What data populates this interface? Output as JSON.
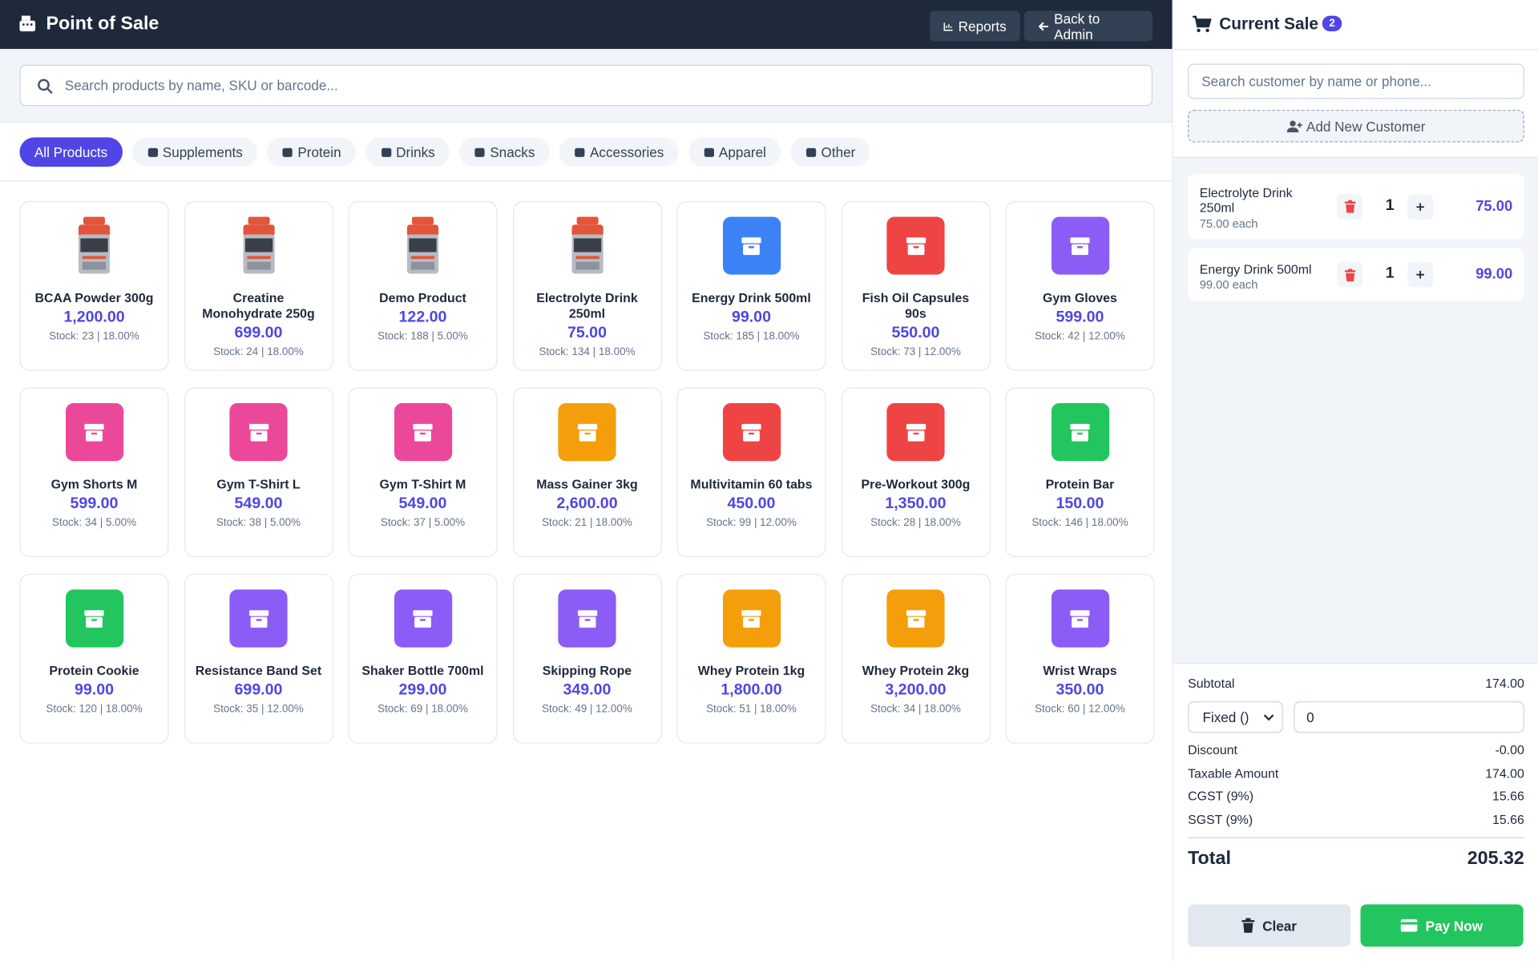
{
  "header": {
    "title": "Point of Sale",
    "buttons": [
      "Reports",
      "Back to Admin"
    ]
  },
  "search": {
    "placeholder": "Search products by name, SKU or barcode..."
  },
  "categories": [
    "All Products",
    "Supplements",
    "Protein",
    "Drinks",
    "Snacks",
    "Accessories",
    "Apparel",
    "Other"
  ],
  "active_category": 0,
  "products": [
    {
      "name": "BCAA Powder 300g",
      "price": "1,200.00",
      "stock": "Stock: 23 | 18.00%",
      "thumb": "photo"
    },
    {
      "name": "Creatine Monohydrate 250g",
      "price": "699.00",
      "stock": "Stock: 24 | 18.00%",
      "thumb": "photo"
    },
    {
      "name": "Demo Product",
      "price": "122.00",
      "stock": "Stock: 188 | 5.00%",
      "thumb": "photo"
    },
    {
      "name": "Electrolyte Drink 250ml",
      "price": "75.00",
      "stock": "Stock: 134 | 18.00%",
      "thumb": "photo"
    },
    {
      "name": "Energy Drink 500ml",
      "price": "99.00",
      "stock": "Stock: 185 | 18.00%",
      "thumb": "#3b82f6"
    },
    {
      "name": "Fish Oil Capsules 90s",
      "price": "550.00",
      "stock": "Stock: 73 | 12.00%",
      "thumb": "#ef4444"
    },
    {
      "name": "Gym Gloves",
      "price": "599.00",
      "stock": "Stock: 42 | 12.00%",
      "thumb": "#8b5cf6"
    },
    {
      "name": "Gym Shorts M",
      "price": "599.00",
      "stock": "Stock: 34 | 5.00%",
      "thumb": "#ec4899"
    },
    {
      "name": "Gym T-Shirt L",
      "price": "549.00",
      "stock": "Stock: 38 | 5.00%",
      "thumb": "#ec4899"
    },
    {
      "name": "Gym T-Shirt M",
      "price": "549.00",
      "stock": "Stock: 37 | 5.00%",
      "thumb": "#ec4899"
    },
    {
      "name": "Mass Gainer 3kg",
      "price": "2,600.00",
      "stock": "Stock: 21 | 18.00%",
      "thumb": "#f59e0b"
    },
    {
      "name": "Multivitamin 60 tabs",
      "price": "450.00",
      "stock": "Stock: 99 | 12.00%",
      "thumb": "#ef4444"
    },
    {
      "name": "Pre-Workout 300g",
      "price": "1,350.00",
      "stock": "Stock: 28 | 18.00%",
      "thumb": "#ef4444"
    },
    {
      "name": "Protein Bar",
      "price": "150.00",
      "stock": "Stock: 146 | 18.00%",
      "thumb": "#22c55e"
    },
    {
      "name": "Protein Cookie",
      "price": "99.00",
      "stock": "Stock: 120 | 18.00%",
      "thumb": "#22c55e"
    },
    {
      "name": "Resistance Band Set",
      "price": "699.00",
      "stock": "Stock: 35 | 12.00%",
      "thumb": "#8b5cf6"
    },
    {
      "name": "Shaker Bottle 700ml",
      "price": "299.00",
      "stock": "Stock: 69 | 18.00%",
      "thumb": "#8b5cf6"
    },
    {
      "name": "Skipping Rope",
      "price": "349.00",
      "stock": "Stock: 49 | 12.00%",
      "thumb": "#8b5cf6"
    },
    {
      "name": "Whey Protein 1kg",
      "price": "1,800.00",
      "stock": "Stock: 51 | 18.00%",
      "thumb": "#f59e0b"
    },
    {
      "name": "Whey Protein 2kg",
      "price": "3,200.00",
      "stock": "Stock: 34 | 18.00%",
      "thumb": "#f59e0b"
    },
    {
      "name": "Wrist Wraps",
      "price": "350.00",
      "stock": "Stock: 60 | 12.00%",
      "thumb": "#8b5cf6"
    }
  ],
  "cart": {
    "title": "Current Sale",
    "count": 2,
    "customer_search": "Search customer by name or phone...",
    "add_customer": "Add New Customer",
    "items": [
      {
        "name": "Electrolyte Drink 250ml",
        "each": "75.00 each",
        "qty": 1,
        "total": "75.00"
      },
      {
        "name": "Energy Drink 500ml",
        "each": "99.00 each",
        "qty": 1,
        "total": "99.00"
      }
    ]
  },
  "summary": {
    "subtotal": [
      "Subtotal",
      "174.00"
    ],
    "discount_type": "Fixed ()",
    "discount_input": "0",
    "rows": [
      [
        "Discount",
        "-0.00"
      ],
      [
        "Taxable Amount",
        "174.00"
      ],
      [
        "CGST (9%)",
        "15.66"
      ],
      [
        "SGST (9%)",
        "15.66"
      ]
    ],
    "total": [
      "Total",
      "205.32"
    ],
    "clear": "Clear",
    "pay": "Pay Now"
  }
}
